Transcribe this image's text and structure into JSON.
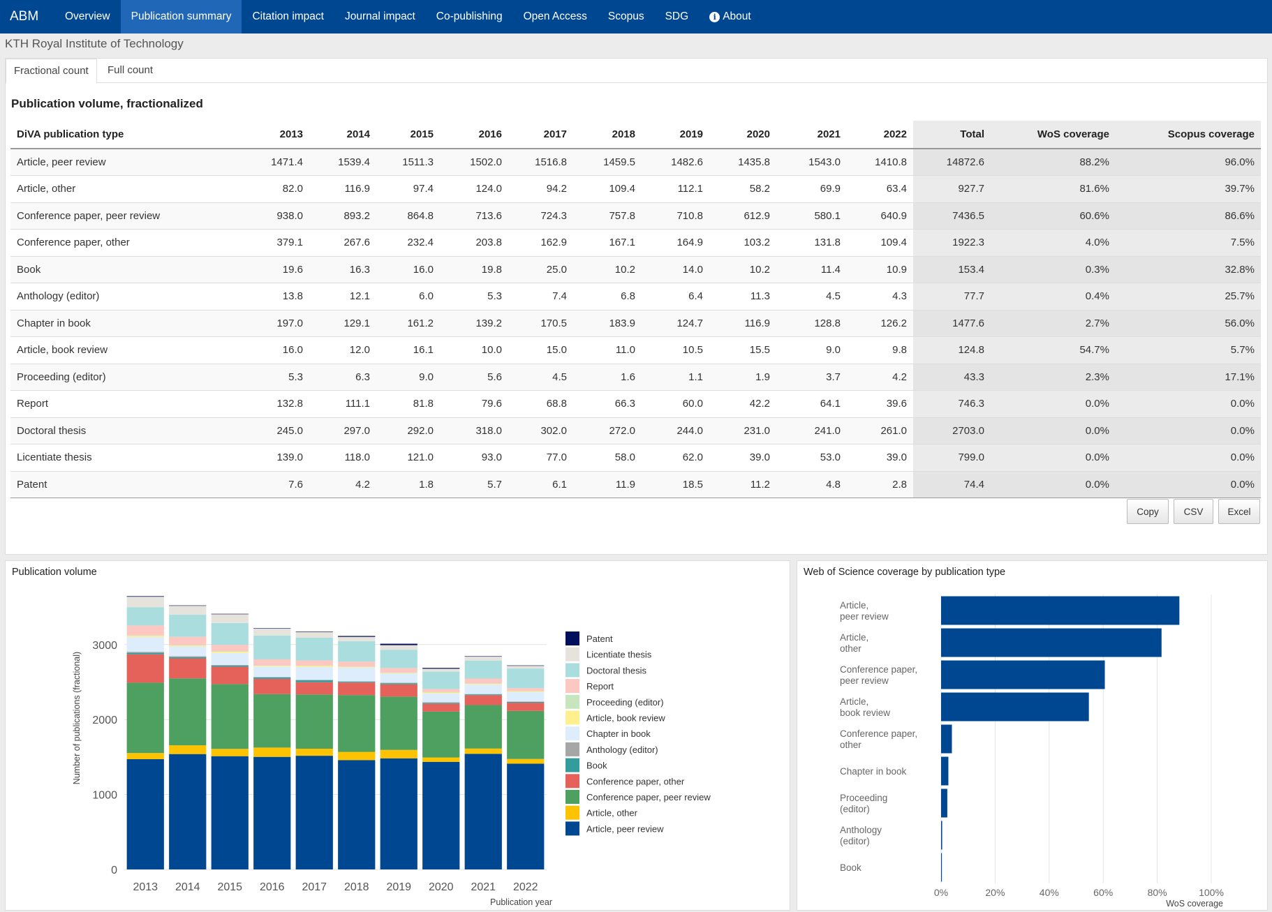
{
  "nav": {
    "brand": "ABM",
    "items": [
      {
        "label": "Overview"
      },
      {
        "label": "Publication summary"
      },
      {
        "label": "Citation impact"
      },
      {
        "label": "Journal impact"
      },
      {
        "label": "Co-publishing"
      },
      {
        "label": "Open Access"
      },
      {
        "label": "Scopus"
      },
      {
        "label": "SDG"
      },
      {
        "label": "About"
      }
    ],
    "active": "Publication summary"
  },
  "org_title": "KTH Royal Institute of Technology",
  "tabs": {
    "fractional": "Fractional count",
    "full": "Full count",
    "active": "Fractional count"
  },
  "table": {
    "title": "Publication volume, fractionalized",
    "headers": [
      "DiVA publication type",
      "2013",
      "2014",
      "2015",
      "2016",
      "2017",
      "2018",
      "2019",
      "2020",
      "2021",
      "2022",
      "Total",
      "WoS coverage",
      "Scopus coverage"
    ],
    "rows": [
      [
        "Article, peer review",
        "1471.4",
        "1539.4",
        "1511.3",
        "1502.0",
        "1516.8",
        "1459.5",
        "1482.6",
        "1435.8",
        "1543.0",
        "1410.8",
        "14872.6",
        "88.2%",
        "96.0%"
      ],
      [
        "Article, other",
        "82.0",
        "116.9",
        "97.4",
        "124.0",
        "94.2",
        "109.4",
        "112.1",
        "58.2",
        "69.9",
        "63.4",
        "927.7",
        "81.6%",
        "39.7%"
      ],
      [
        "Conference paper, peer review",
        "938.0",
        "893.2",
        "864.8",
        "713.6",
        "724.3",
        "757.8",
        "710.8",
        "612.9",
        "580.1",
        "640.9",
        "7436.5",
        "60.6%",
        "86.6%"
      ],
      [
        "Conference paper, other",
        "379.1",
        "267.6",
        "232.4",
        "203.8",
        "162.9",
        "167.1",
        "164.9",
        "103.2",
        "131.8",
        "109.4",
        "1922.3",
        "4.0%",
        "7.5%"
      ],
      [
        "Book",
        "19.6",
        "16.3",
        "16.0",
        "19.8",
        "25.0",
        "10.2",
        "14.0",
        "10.2",
        "11.4",
        "10.9",
        "153.4",
        "0.3%",
        "32.8%"
      ],
      [
        "Anthology (editor)",
        "13.8",
        "12.1",
        "6.0",
        "5.3",
        "7.4",
        "6.8",
        "6.4",
        "11.3",
        "4.5",
        "4.3",
        "77.7",
        "0.4%",
        "25.7%"
      ],
      [
        "Chapter in book",
        "197.0",
        "129.1",
        "161.2",
        "139.2",
        "170.5",
        "183.9",
        "124.7",
        "116.9",
        "128.8",
        "126.2",
        "1477.6",
        "2.7%",
        "56.0%"
      ],
      [
        "Article, book review",
        "16.0",
        "12.0",
        "16.1",
        "10.0",
        "15.0",
        "11.0",
        "10.5",
        "15.5",
        "9.0",
        "9.8",
        "124.8",
        "54.7%",
        "5.7%"
      ],
      [
        "Proceeding (editor)",
        "5.3",
        "6.3",
        "9.0",
        "5.6",
        "4.5",
        "1.6",
        "1.1",
        "1.9",
        "3.7",
        "4.2",
        "43.3",
        "2.3%",
        "17.1%"
      ],
      [
        "Report",
        "132.8",
        "111.1",
        "81.8",
        "79.6",
        "68.8",
        "66.3",
        "60.0",
        "42.2",
        "64.1",
        "39.6",
        "746.3",
        "0.0%",
        "0.0%"
      ],
      [
        "Doctoral thesis",
        "245.0",
        "297.0",
        "292.0",
        "318.0",
        "302.0",
        "272.0",
        "244.0",
        "231.0",
        "241.0",
        "261.0",
        "2703.0",
        "0.0%",
        "0.0%"
      ],
      [
        "Licentiate thesis",
        "139.0",
        "118.0",
        "121.0",
        "93.0",
        "77.0",
        "58.0",
        "62.0",
        "39.0",
        "53.0",
        "39.0",
        "799.0",
        "0.0%",
        "0.0%"
      ],
      [
        "Patent",
        "7.6",
        "4.2",
        "1.8",
        "5.7",
        "6.1",
        "11.9",
        "18.5",
        "11.2",
        "4.8",
        "2.8",
        "74.4",
        "0.0%",
        "0.0%"
      ]
    ]
  },
  "buttons": {
    "copy": "Copy",
    "csv": "CSV",
    "excel": "Excel"
  },
  "chart_data": [
    {
      "type": "bar",
      "stacked": true,
      "title": "Publication volume",
      "xlabel": "Publication year",
      "ylabel": "Number of publications (fractional)",
      "ylim": [
        0,
        3700
      ],
      "yticks": [
        0,
        1000,
        2000,
        3000
      ],
      "categories": [
        "2013",
        "2014",
        "2015",
        "2016",
        "2017",
        "2018",
        "2019",
        "2020",
        "2021",
        "2022"
      ],
      "series": [
        {
          "name": "Article, peer review",
          "color": "#004791",
          "values": [
            1471.4,
            1539.4,
            1511.3,
            1502.0,
            1516.8,
            1459.5,
            1482.6,
            1435.8,
            1543.0,
            1410.8
          ]
        },
        {
          "name": "Article, other",
          "color": "#fdc300",
          "values": [
            82.0,
            116.9,
            97.4,
            124.0,
            94.2,
            109.4,
            112.1,
            58.2,
            69.9,
            63.4
          ]
        },
        {
          "name": "Conference paper, peer review",
          "color": "#4da060",
          "values": [
            938.0,
            893.2,
            864.8,
            713.6,
            724.3,
            757.8,
            710.8,
            612.9,
            580.1,
            640.9
          ]
        },
        {
          "name": "Conference paper, other",
          "color": "#e4625a",
          "values": [
            379.1,
            267.6,
            232.4,
            203.8,
            162.9,
            167.1,
            164.9,
            103.2,
            131.8,
            109.4
          ]
        },
        {
          "name": "Book",
          "color": "#339c9c",
          "values": [
            19.6,
            16.3,
            16.0,
            19.8,
            25.0,
            10.2,
            14.0,
            10.2,
            11.4,
            10.9
          ]
        },
        {
          "name": "Anthology (editor)",
          "color": "#a6a6a6",
          "values": [
            13.8,
            12.1,
            6.0,
            5.3,
            7.4,
            6.8,
            6.4,
            11.3,
            4.5,
            4.3
          ]
        },
        {
          "name": "Chapter in book",
          "color": "#deedfb",
          "values": [
            197.0,
            129.1,
            161.2,
            139.2,
            170.5,
            183.9,
            124.7,
            116.9,
            128.8,
            126.2
          ]
        },
        {
          "name": "Article, book review",
          "color": "#ffef8f",
          "values": [
            16.0,
            12.0,
            16.1,
            10.0,
            15.0,
            11.0,
            10.5,
            15.5,
            9.0,
            9.8
          ]
        },
        {
          "name": "Proceeding (editor)",
          "color": "#c7e6bf",
          "values": [
            5.3,
            6.3,
            9.0,
            5.6,
            4.5,
            1.6,
            1.1,
            1.9,
            3.7,
            4.2
          ]
        },
        {
          "name": "Report",
          "color": "#fcc8c1",
          "values": [
            132.8,
            111.1,
            81.8,
            79.6,
            68.8,
            66.3,
            60.0,
            42.2,
            64.1,
            39.6
          ]
        },
        {
          "name": "Doctoral thesis",
          "color": "#aadede",
          "values": [
            245.0,
            297.0,
            292.0,
            318.0,
            302.0,
            272.0,
            244.0,
            231.0,
            241.0,
            261.0
          ]
        },
        {
          "name": "Licentiate thesis",
          "color": "#e6e3dc",
          "values": [
            139.0,
            118.0,
            121.0,
            93.0,
            77.0,
            58.0,
            62.0,
            39.0,
            53.0,
            39.0
          ]
        },
        {
          "name": "Patent",
          "color": "#000f5c",
          "values": [
            7.6,
            4.2,
            1.8,
            5.7,
            6.1,
            11.9,
            18.5,
            11.2,
            4.8,
            2.8
          ]
        }
      ],
      "legend_order": [
        "Patent",
        "Licentiate thesis",
        "Doctoral thesis",
        "Report",
        "Proceeding (editor)",
        "Article, book review",
        "Chapter in book",
        "Anthology (editor)",
        "Book",
        "Conference paper, other",
        "Conference paper, peer review",
        "Article, other",
        "Article, peer review"
      ],
      "legend": "right",
      "grid": true
    },
    {
      "type": "bar",
      "orientation": "horizontal",
      "title": "Web of Science coverage by publication type",
      "xlabel": "WoS coverage",
      "xlim": [
        0,
        1.05
      ],
      "xticks": [
        "0%",
        "20%",
        "40%",
        "60%",
        "80%",
        "100%"
      ],
      "bar_color": "#004791",
      "categories": [
        [
          "Article,",
          "peer review"
        ],
        [
          "Article,",
          "other"
        ],
        [
          "Conference paper,",
          "peer review"
        ],
        [
          "Article,",
          "book review"
        ],
        [
          "Conference paper,",
          "other"
        ],
        [
          "Chapter in book"
        ],
        [
          "Proceeding",
          "(editor)"
        ],
        [
          "Anthology",
          "(editor)"
        ],
        [
          "Book"
        ]
      ],
      "values": [
        0.882,
        0.816,
        0.606,
        0.547,
        0.04,
        0.027,
        0.023,
        0.004,
        0.003
      ],
      "grid": true
    }
  ]
}
